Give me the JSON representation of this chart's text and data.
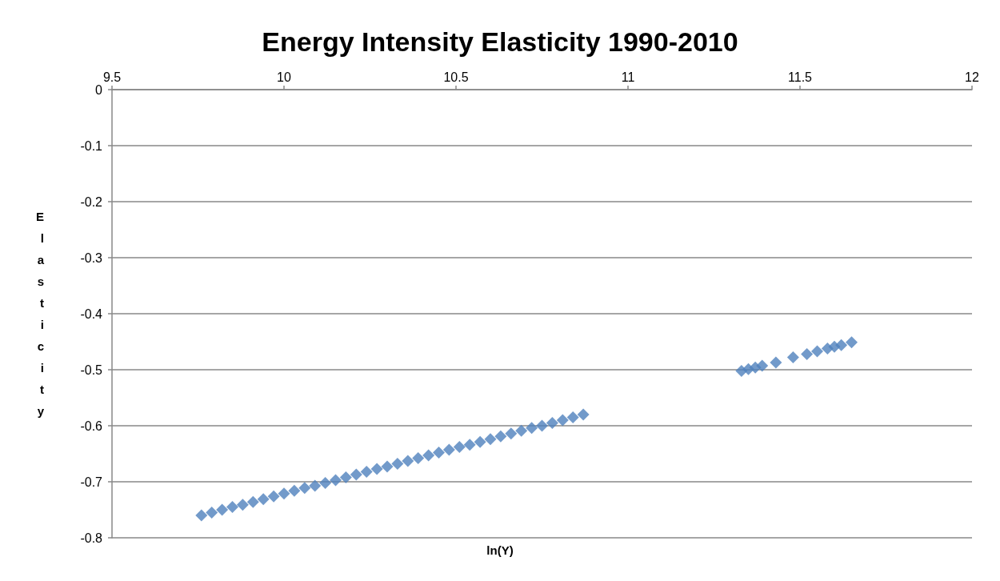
{
  "chart_data": {
    "type": "scatter",
    "title": "Energy Intensity Elasticity 1990-2010",
    "xlabel": "ln(Y)",
    "ylabel": "Elasticity",
    "marker": "diamond",
    "grid": "y",
    "xlim": [
      9.5,
      12
    ],
    "xticks": [
      9.5,
      10,
      10.5,
      11,
      11.5,
      12
    ],
    "ylim": [
      -0.8,
      0
    ],
    "yticks": [
      -0.8,
      -0.7,
      -0.6,
      -0.5,
      -0.4,
      -0.3,
      -0.2,
      -0.1,
      0
    ],
    "series": [
      {
        "color": "#4f81bd",
        "x": [
          9.76,
          9.79,
          9.82,
          9.85,
          9.88,
          9.91,
          9.94,
          9.97,
          10.0,
          10.03,
          10.06,
          10.09,
          10.12,
          10.15,
          10.18,
          10.21,
          10.24,
          10.27,
          10.3,
          10.33,
          10.36,
          10.39,
          10.42,
          10.45,
          10.48,
          10.51,
          10.54,
          10.57,
          10.6,
          10.63,
          10.66,
          10.69,
          10.72,
          10.75,
          10.78,
          10.81,
          10.84,
          10.87,
          11.33,
          11.35,
          11.37,
          11.39,
          11.43,
          11.48,
          11.52,
          11.55,
          11.58,
          11.6,
          11.62,
          11.65
        ],
        "values": [
          -0.76,
          -0.755,
          -0.75,
          -0.745,
          -0.741,
          -0.736,
          -0.731,
          -0.726,
          -0.721,
          -0.716,
          -0.711,
          -0.707,
          -0.702,
          -0.697,
          -0.692,
          -0.687,
          -0.682,
          -0.677,
          -0.673,
          -0.668,
          -0.663,
          -0.658,
          -0.653,
          -0.648,
          -0.643,
          -0.638,
          -0.634,
          -0.629,
          -0.624,
          -0.619,
          -0.614,
          -0.609,
          -0.604,
          -0.6,
          -0.595,
          -0.59,
          -0.585,
          -0.58,
          -0.502,
          -0.499,
          -0.496,
          -0.493,
          -0.487,
          -0.478,
          -0.472,
          -0.467,
          -0.462,
          -0.459,
          -0.456,
          -0.451
        ]
      }
    ]
  }
}
